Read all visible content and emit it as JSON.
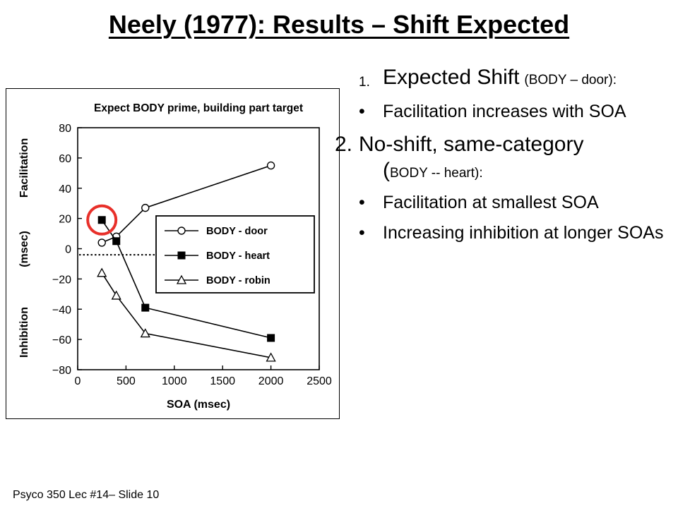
{
  "slide": {
    "title": "Neely (1977): Results – Shift Expected",
    "footer": "Psyco 350 Lec #14– Slide 10"
  },
  "points": [
    {
      "marker": "1.",
      "main": "Expected Shift",
      "sub": "(BODY – door):"
    },
    {
      "marker": "•",
      "text": "Facilitation increases with SOA"
    },
    {
      "marker": "2.",
      "main": "No-shift, same-category",
      "sub_open": "(",
      "sub": "BODY -- heart):"
    },
    {
      "marker": "•",
      "text": "Facilitation at smallest SOA"
    },
    {
      "marker": "•",
      "text": "Increasing inhibition at longer SOAs"
    }
  ],
  "chart_data": {
    "type": "line",
    "title": "Expect BODY prime, building part target",
    "xlabel": "SOA (msec)",
    "ylabel_top": "Facilitation",
    "ylabel_mid": "(msec)",
    "ylabel_bottom": "Inhibition",
    "xlim": [
      0,
      2500
    ],
    "ylim": [
      -80,
      80
    ],
    "xticks": [
      0,
      500,
      1000,
      1500,
      2000,
      2500
    ],
    "yticks": [
      80,
      60,
      40,
      20,
      0,
      -20,
      -40,
      -60,
      -80
    ],
    "ytick_labels": [
      "80",
      "60",
      "40",
      "20",
      "0",
      "−20",
      "−40",
      "−60",
      "−80"
    ],
    "legend_position": "center-right",
    "series": [
      {
        "name": "BODY - door",
        "marker": "circle",
        "x": [
          250,
          400,
          700,
          2000
        ],
        "y": [
          4,
          8,
          27,
          55
        ]
      },
      {
        "name": "BODY - heart",
        "marker": "square",
        "x": [
          250,
          400,
          700,
          2000
        ],
        "y": [
          19,
          5,
          -39,
          -59
        ]
      },
      {
        "name": "BODY - robin",
        "marker": "triangle",
        "x": [
          250,
          400,
          700,
          2000
        ],
        "y": [
          -16,
          -31,
          -56,
          -72
        ]
      }
    ],
    "reference_line_y": -4,
    "highlight": {
      "series": "BODY - heart",
      "x": 250,
      "color": "#e8302a"
    }
  }
}
